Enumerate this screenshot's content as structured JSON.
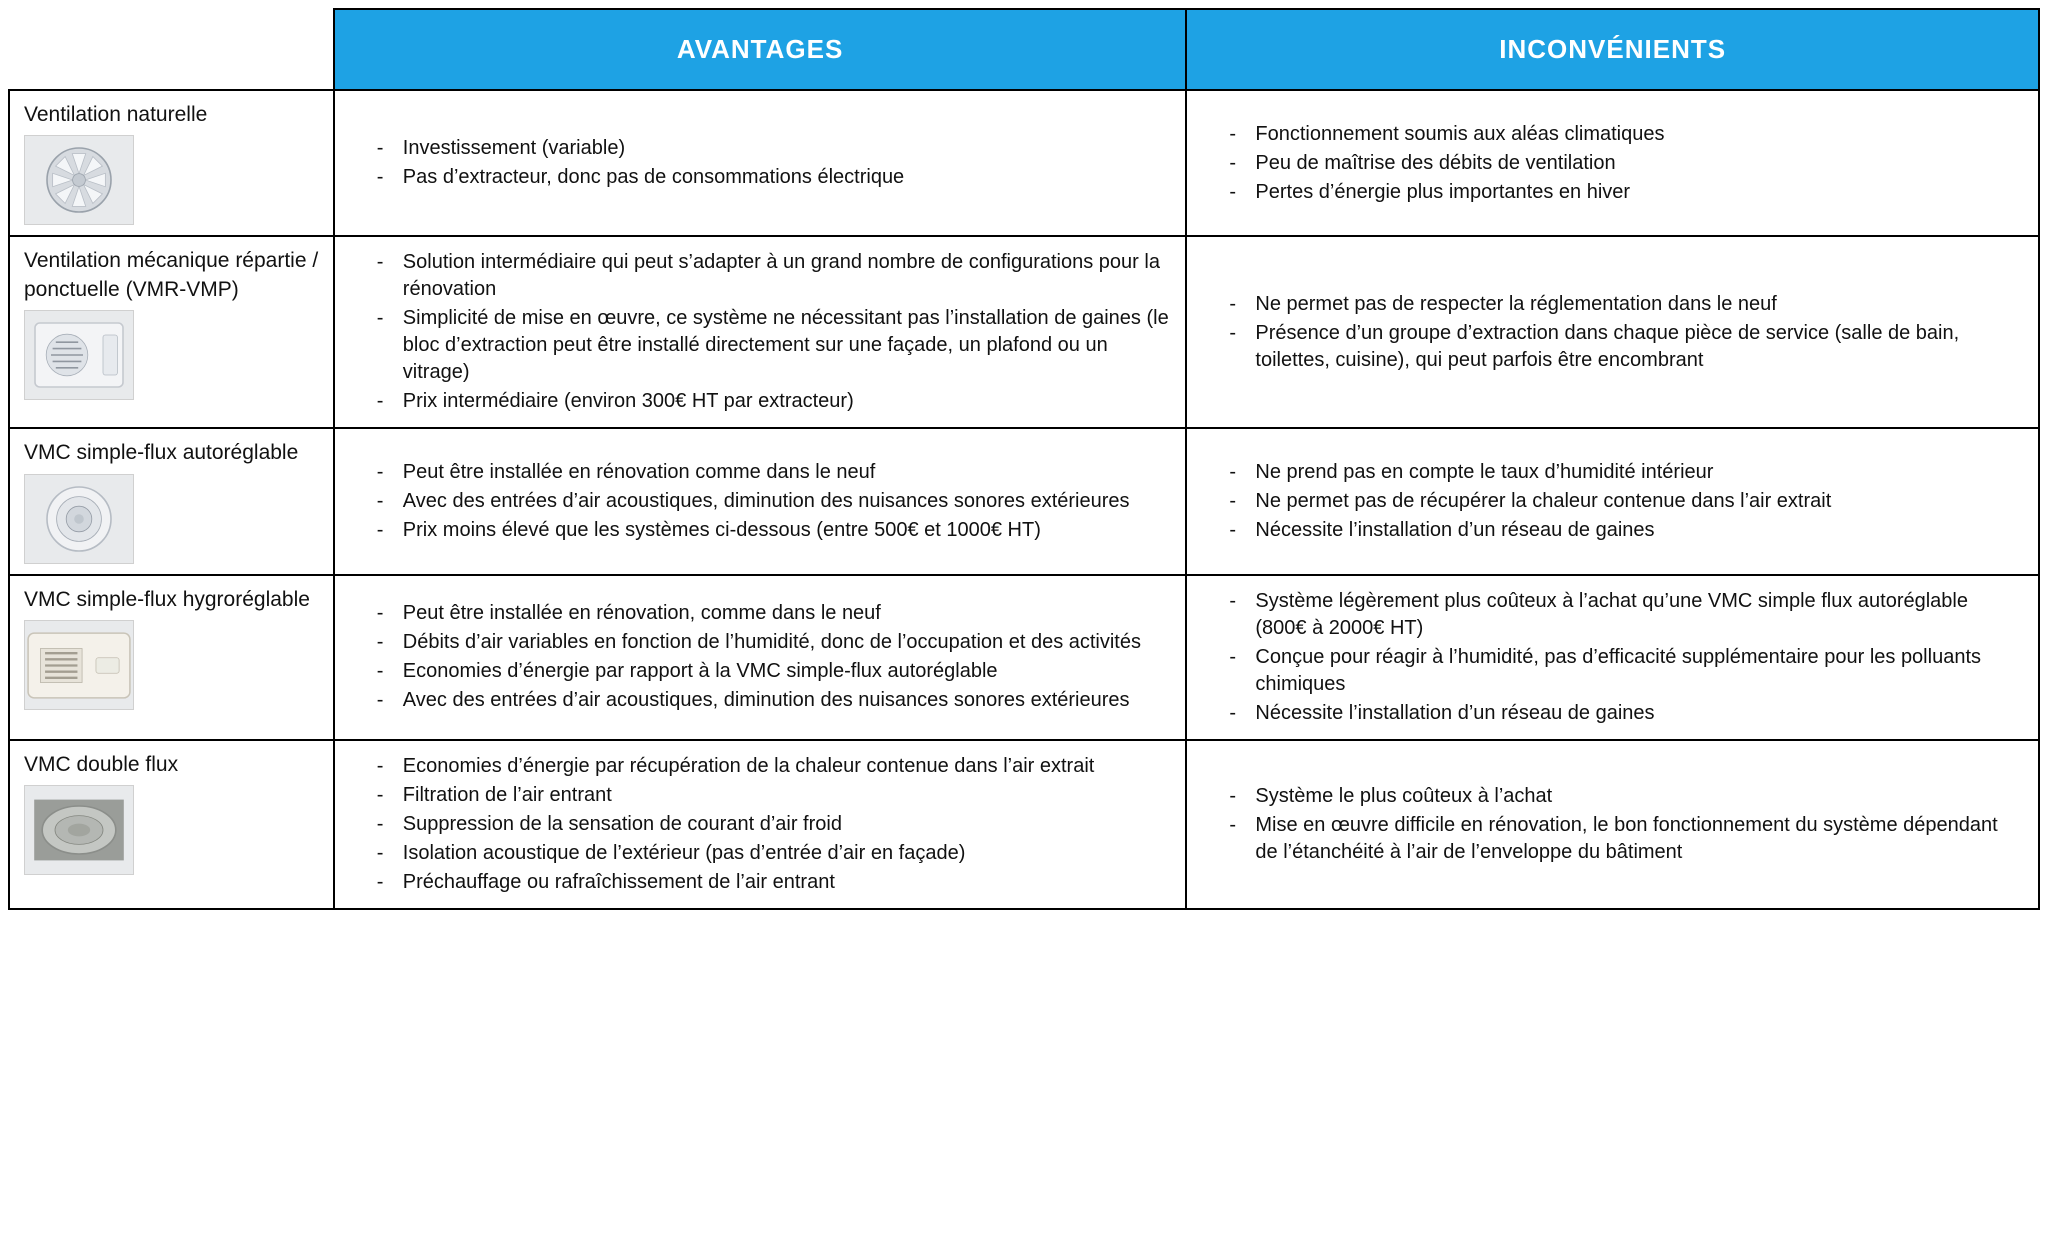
{
  "header": {
    "advantages": "AVANTAGES",
    "disadvantages": "INCONVÉNIENTS"
  },
  "colors": {
    "header_bg": "#1ea2e4",
    "header_text": "#ffffff",
    "border": "#000000",
    "text": "#111111",
    "thumb_bg": "#e8eaec",
    "thumb_border": "#d0d0d0"
  },
  "layout": {
    "col_widths_pct": [
      16,
      42,
      42
    ],
    "header_fontsize_pt": 20,
    "body_fontsize_pt": 15,
    "font_family": "Segoe UI / sans-serif"
  },
  "rows": [
    {
      "id": "vent-nat",
      "title": "Ventilation naturelle",
      "advantages": [
        "Investissement (variable)",
        "Pas d’extracteur, donc pas de consommations électrique"
      ],
      "disadvantages": [
        "Fonctionnement soumis aux aléas climatiques",
        "Peu de maîtrise des débits de ventilation",
        "Pertes d’énergie plus importantes en hiver"
      ],
      "icon": "air-vent-round"
    },
    {
      "id": "vmr-vmp",
      "title": "Ventilation mécanique répartie / ponctuelle (VMR-VMP)",
      "advantages": [
        "Solution intermédiaire qui peut s’adapter à un grand nombre de configurations pour la rénovation",
        "Simplicité de mise en œuvre, ce système ne nécessitant pas l’installation de gaines (le bloc d’extraction peut être installé directement sur une façade, un plafond ou un vitrage)",
        "Prix intermédiaire (environ 300€ HT par extracteur)"
      ],
      "disadvantages": [
        "Ne permet pas de respecter la réglementation dans le neuf",
        "Présence d’un groupe d’extraction dans chaque pièce de service (salle de bain, toilettes, cuisine), qui peut parfois être encombrant"
      ],
      "icon": "wall-extractor"
    },
    {
      "id": "vmc-sf-auto",
      "title": "VMC simple-flux autoréglable",
      "advantages": [
        "Peut être installée en rénovation comme dans le neuf",
        "Avec des entrées d’air acoustiques, diminution des nuisances sonores extérieures",
        "Prix moins élevé que les systèmes ci-dessous (entre 500€ et 1000€ HT)"
      ],
      "disadvantages": [
        "Ne prend pas en compte le taux d’humidité intérieur",
        "Ne permet pas de récupérer la chaleur contenue dans l’air extrait",
        "Nécessite l’installation d’un réseau de gaines"
      ],
      "icon": "ceiling-vent-ring"
    },
    {
      "id": "vmc-sf-hygro",
      "title": "VMC simple-flux hygroréglable",
      "advantages": [
        "Peut être installée en rénovation, comme dans le neuf",
        "Débits d’air variables en fonction de l’humidité, donc de l’occupation et des activités",
        "Economies d’énergie par rapport à la VMC simple-flux autoréglable",
        "Avec des entrées d’air acoustiques, diminution des nuisances sonores extérieures"
      ],
      "disadvantages": [
        "Système légèrement plus coûteux à l’achat qu’une VMC simple flux autoréglable (800€ à 2000€ HT)",
        "Conçue pour réagir à l’humidité, pas d’efficacité supplémentaire pour les polluants chimiques",
        "Nécessite l’installation d’un réseau de gaines"
      ],
      "icon": "hygro-wall-unit"
    },
    {
      "id": "vmc-df",
      "title": "VMC double flux",
      "advantages": [
        "Economies d’énergie par récupération de la chaleur contenue dans l’air extrait",
        "Filtration de l’air entrant",
        "Suppression de la sensation de courant d’air froid",
        "Isolation acoustique de l’extérieur (pas d’entrée d’air en façade)",
        "Préchauffage ou rafraîchissement de l’air entrant"
      ],
      "disadvantages": [
        "Système le plus coûteux à l’achat",
        "Mise en œuvre difficile en rénovation, le bon fonctionnement du système dépendant de l’étanchéité à l’air de l’enveloppe du bâtiment"
      ],
      "icon": "ceiling-disc-vent"
    }
  ]
}
